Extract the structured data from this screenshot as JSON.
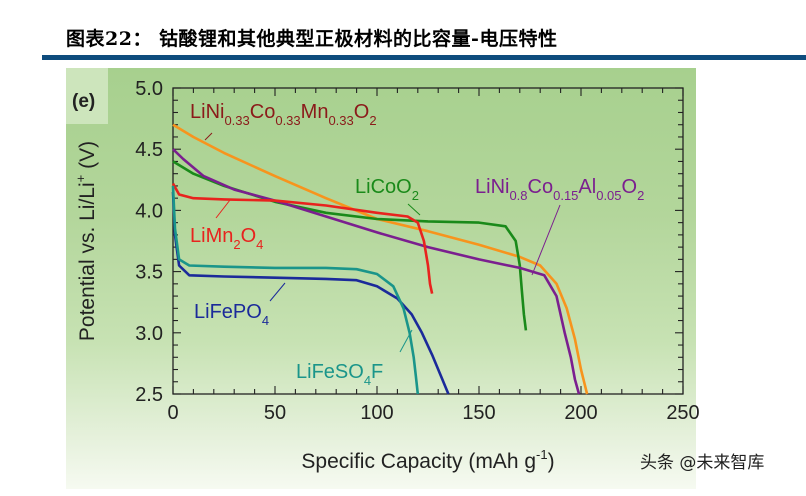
{
  "header": {
    "title": "图表22：  钴酸锂和其他典型正极材料的比容量-电压特性",
    "rule_color": "#0e4c7d"
  },
  "panel_label": "(e)",
  "watermark": "头条 @未来智库",
  "chart_data": {
    "type": "line",
    "title": "钴酸锂和其他典型正极材料的比容量-电压特性",
    "xlabel": "Specific Capacity (mAh g-1)",
    "ylabel": "Potential vs. Li/Li+ (V)",
    "xlim": [
      0,
      250
    ],
    "ylim": [
      2.5,
      5.0
    ],
    "xticks": [
      0,
      50,
      100,
      150,
      200,
      250
    ],
    "yticks": [
      2.5,
      3.0,
      3.5,
      4.0,
      4.5,
      5.0
    ],
    "grid": false,
    "legend": "inline labels",
    "series": [
      {
        "name": "LiNi0.33Co0.33Mn0.33O2",
        "color": "#f7941d",
        "x": [
          0,
          10,
          25,
          50,
          75,
          100,
          125,
          150,
          170,
          180,
          188,
          193,
          197,
          200,
          203
        ],
        "y": [
          4.7,
          4.6,
          4.47,
          4.28,
          4.1,
          3.93,
          3.83,
          3.72,
          3.62,
          3.55,
          3.4,
          3.2,
          2.95,
          2.7,
          2.5
        ]
      },
      {
        "name": "LiCoO2",
        "color": "#1a8a1a",
        "x": [
          0,
          10,
          25,
          50,
          75,
          100,
          125,
          150,
          163,
          168,
          170,
          171,
          172,
          173
        ],
        "y": [
          4.4,
          4.3,
          4.2,
          4.07,
          3.98,
          3.93,
          3.91,
          3.9,
          3.87,
          3.75,
          3.55,
          3.35,
          3.15,
          3.02
        ]
      },
      {
        "name": "LiNi0.8Co0.15Al0.05O2",
        "color": "#7b1f8f",
        "x": [
          0,
          5,
          15,
          30,
          50,
          75,
          100,
          125,
          150,
          170,
          182,
          188,
          192,
          195,
          197,
          199
        ],
        "y": [
          4.5,
          4.42,
          4.28,
          4.17,
          4.08,
          3.95,
          3.82,
          3.7,
          3.6,
          3.53,
          3.47,
          3.3,
          3.0,
          2.8,
          2.62,
          2.5
        ]
      },
      {
        "name": "LiMn2O4",
        "color": "#e8231e",
        "x": [
          0,
          3,
          10,
          25,
          50,
          75,
          100,
          115,
          120,
          123,
          125,
          126,
          127
        ],
        "y": [
          4.22,
          4.13,
          4.1,
          4.09,
          4.08,
          4.04,
          3.98,
          3.95,
          3.9,
          3.75,
          3.55,
          3.4,
          3.32
        ]
      },
      {
        "name": "LiFePO4",
        "color": "#1b2a9a",
        "x": [
          0,
          1,
          3,
          8,
          25,
          50,
          75,
          90,
          100,
          110,
          117,
          122,
          127,
          132,
          135
        ],
        "y": [
          4.15,
          3.8,
          3.55,
          3.47,
          3.46,
          3.45,
          3.44,
          3.43,
          3.38,
          3.28,
          3.15,
          3.0,
          2.82,
          2.62,
          2.5
        ]
      },
      {
        "name": "LiFeSO4F",
        "color": "#1a958a",
        "x": [
          0,
          1,
          3,
          8,
          25,
          50,
          75,
          90,
          100,
          108,
          113,
          116,
          118,
          119,
          120
        ],
        "y": [
          4.2,
          3.85,
          3.6,
          3.55,
          3.54,
          3.53,
          3.53,
          3.52,
          3.48,
          3.38,
          3.2,
          3.0,
          2.8,
          2.65,
          2.5
        ]
      }
    ],
    "annotations": [
      {
        "text": "LiNi",
        "sub1": "0.33",
        "mid1": "Co",
        "sub2": "0.33",
        "mid2": "Mn",
        "sub3": "0.33",
        "mid3": "O",
        "sub4": "2",
        "color": "#8b1a1a"
      },
      {
        "text": "LiCoO",
        "sub": "2",
        "color": "#1a8a1a"
      },
      {
        "text": "LiNi",
        "sub1": "0.8",
        "mid1": "Co",
        "sub2": "0.15",
        "mid2": "Al",
        "sub3": "0.05",
        "mid3": "O",
        "sub4": "2",
        "color": "#7b1f8f"
      },
      {
        "text": "LiMn",
        "sub1": "2",
        "mid1": "O",
        "sub2": "4",
        "color": "#e8231e"
      },
      {
        "text": "LiFePO",
        "sub": "4",
        "color": "#1b2a9a"
      },
      {
        "text": "LiFeSO",
        "sub": "4",
        "tail": "F",
        "color": "#1a958a"
      }
    ]
  }
}
